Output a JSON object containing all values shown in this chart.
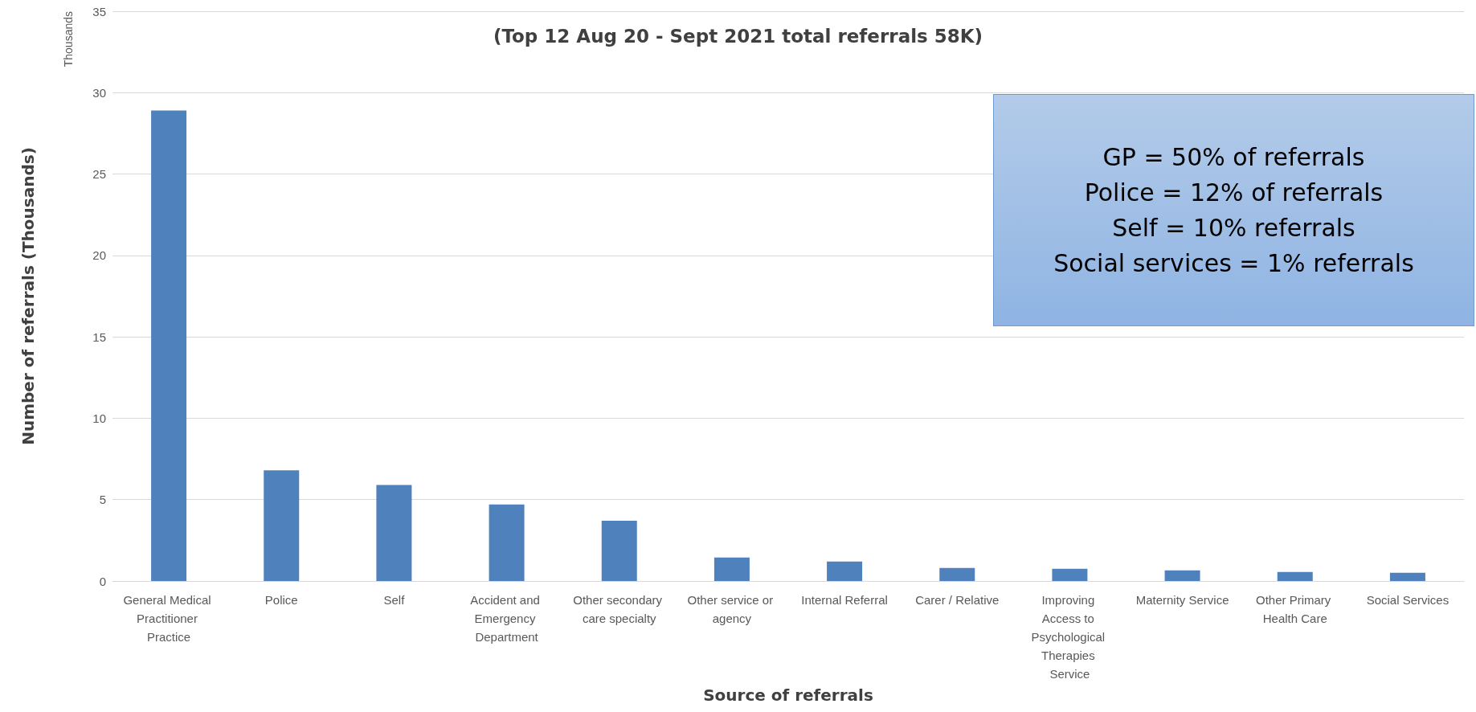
{
  "chart_data": {
    "type": "bar",
    "title": "(Top 12 Aug 20 - Sept 2021 total referrals 58K)",
    "xlabel": "Source of referrals",
    "ylabel": "Number of referrals (Thousands)",
    "categories": [
      "General Medical Practitioner Practice",
      "Police",
      "Self",
      "Accident and Emergency Department",
      "Other secondary care specialty",
      "Other service or agency",
      "Internal Referral",
      "Carer / Relative",
      "Improving Access to Psychological Therapies Service",
      "Maternity Service",
      "Other Primary Health Care",
      "Social Services"
    ],
    "values": [
      28.9,
      6.8,
      5.9,
      4.7,
      3.7,
      1.45,
      1.2,
      0.8,
      0.75,
      0.65,
      0.55,
      0.5
    ],
    "color": "#4f81bd",
    "ylim": [
      0,
      35
    ],
    "yticks": [
      0,
      5,
      10,
      15,
      20,
      25,
      30,
      35
    ],
    "grid": "y",
    "annotations": [
      "Thousands",
      "GP = 50% of referrals\nPolice = 12% of referrals\nSelf = 10% referrals\nSocial services = 1% referrals"
    ]
  }
}
